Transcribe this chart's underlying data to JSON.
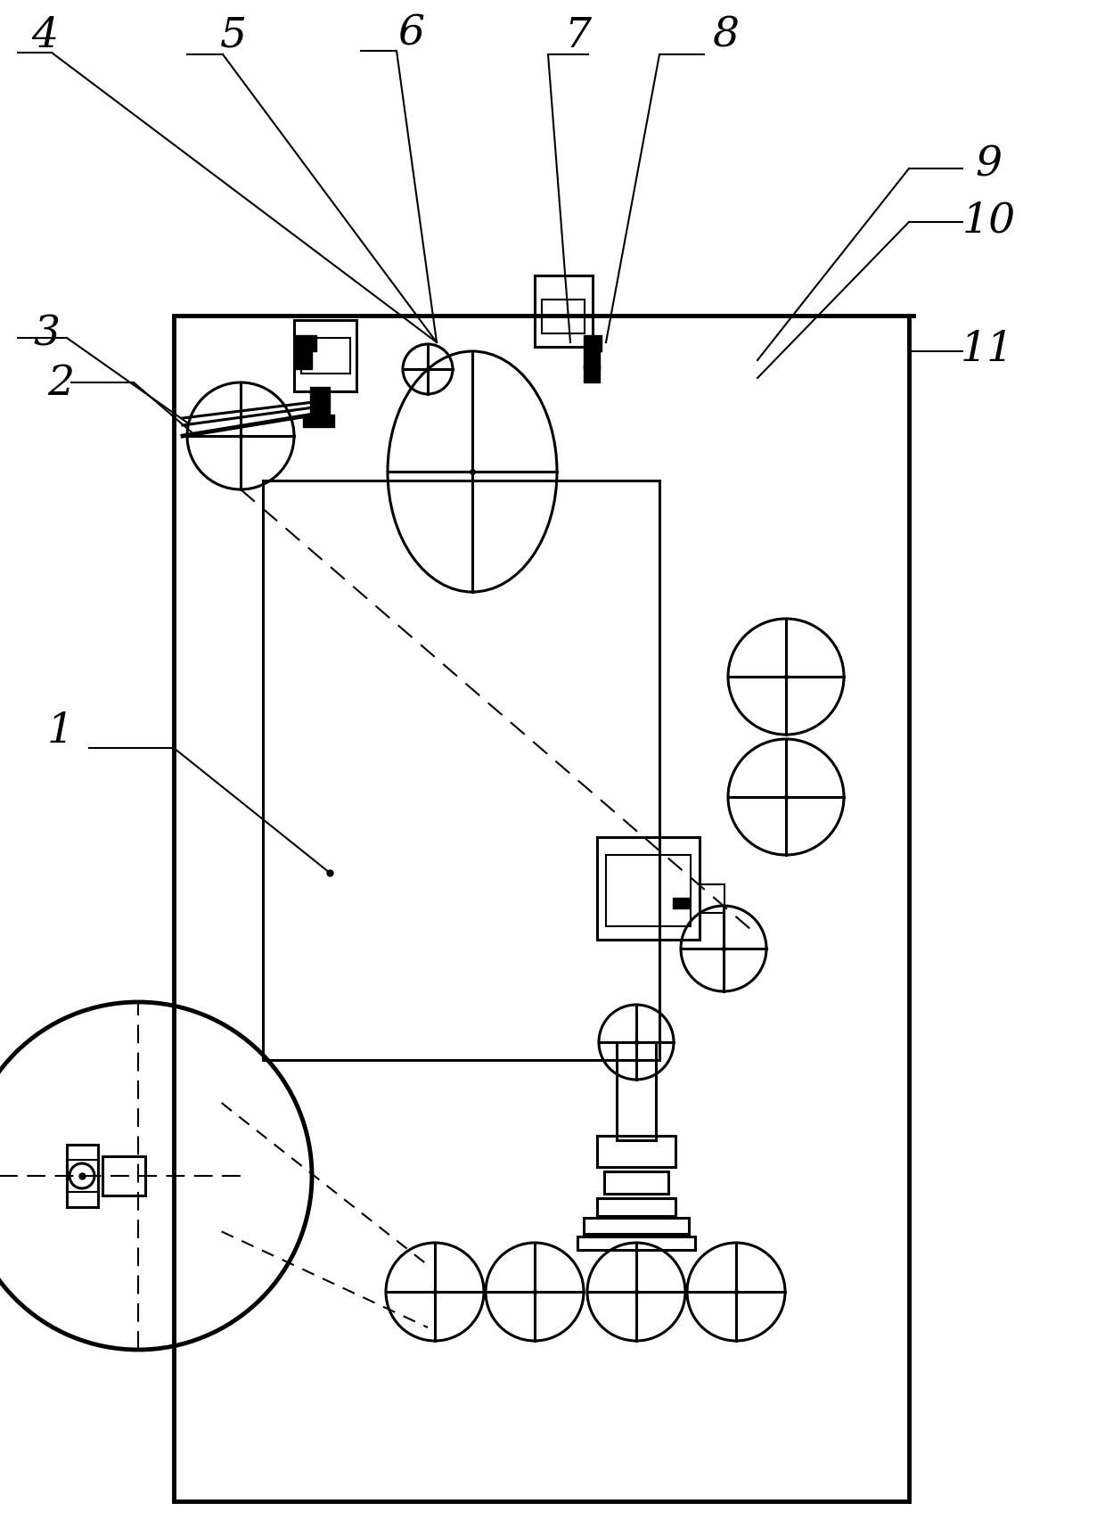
{
  "bg_color": "#ffffff",
  "line_color": "#000000",
  "figsize": [
    12.4,
    17.06
  ],
  "dpi": 100
}
